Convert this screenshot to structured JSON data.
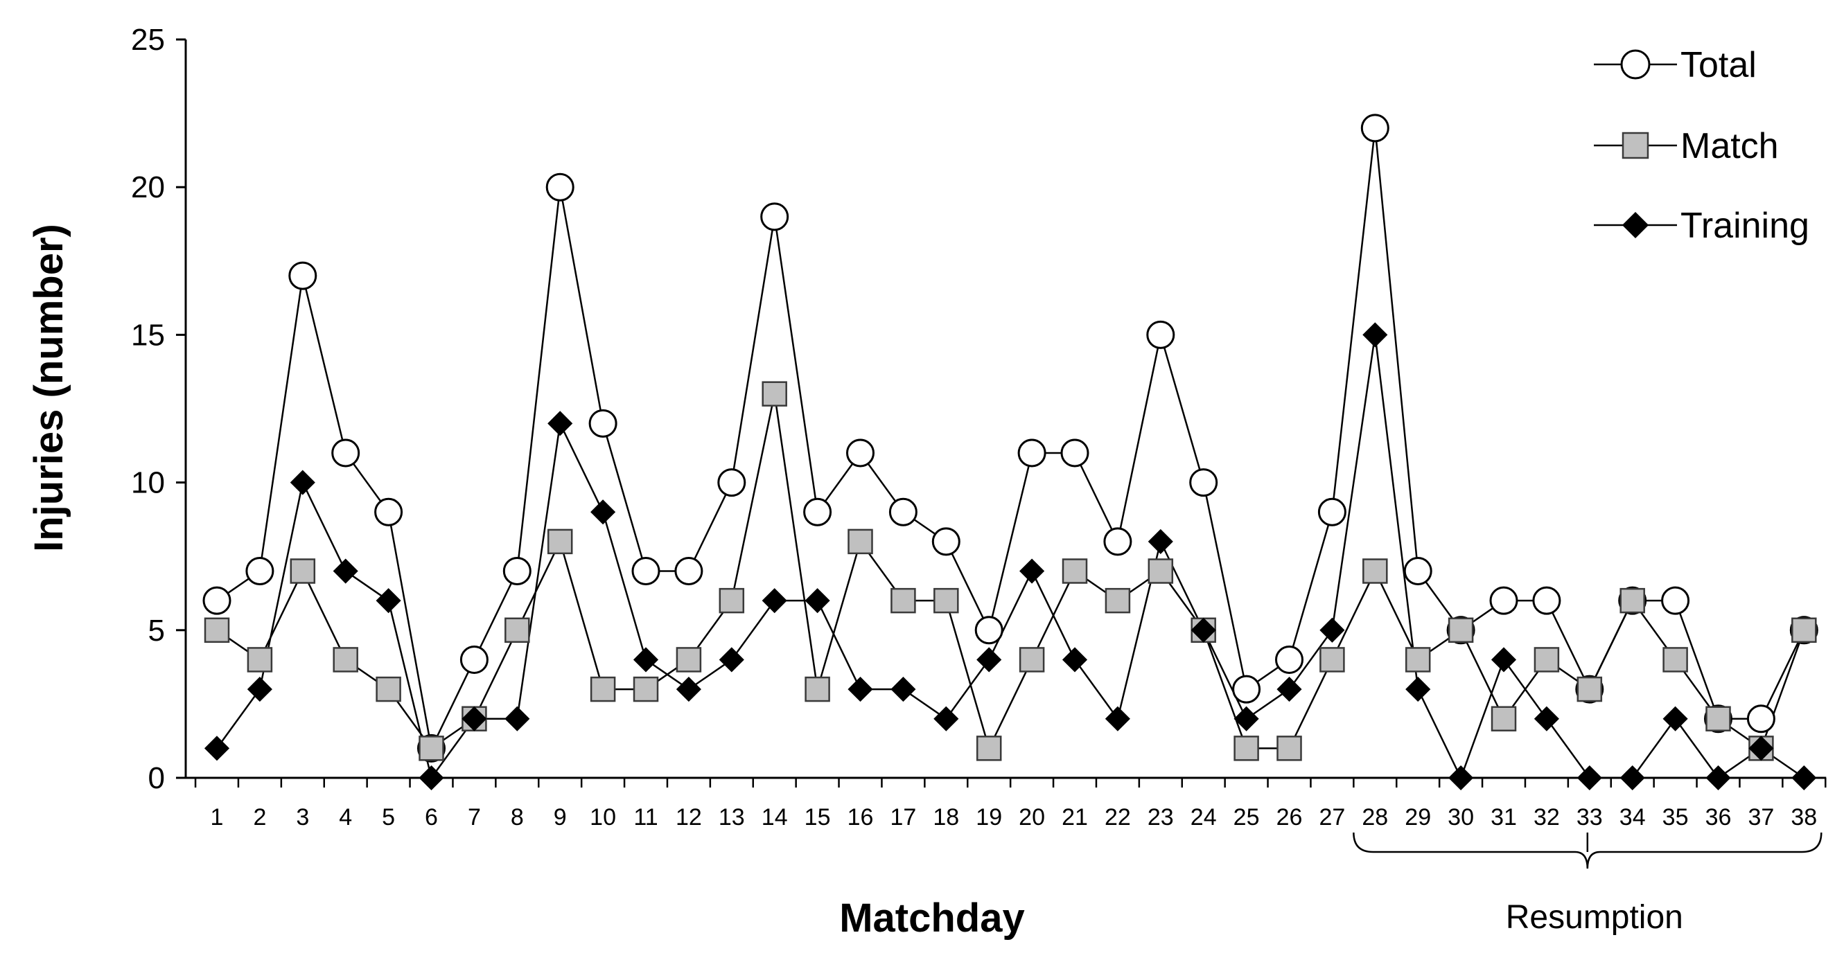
{
  "chart_data": {
    "type": "line",
    "xlabel": "Matchday",
    "ylabel": "Injuries (number)",
    "ylim": [
      0,
      25
    ],
    "yticks": [
      0,
      5,
      10,
      15,
      20,
      25
    ],
    "x": [
      1,
      2,
      3,
      4,
      5,
      6,
      7,
      8,
      9,
      10,
      11,
      12,
      13,
      14,
      15,
      16,
      17,
      18,
      19,
      20,
      21,
      22,
      23,
      24,
      25,
      26,
      27,
      28,
      29,
      30,
      31,
      32,
      33,
      34,
      35,
      36,
      37,
      38
    ],
    "series": [
      {
        "name": "Total",
        "marker": "circle",
        "color": "#ffffff",
        "values": [
          6,
          7,
          17,
          11,
          9,
          1,
          4,
          7,
          20,
          12,
          7,
          7,
          10,
          19,
          9,
          11,
          9,
          8,
          5,
          11,
          11,
          8,
          15,
          10,
          3,
          4,
          9,
          22,
          7,
          5,
          6,
          6,
          3,
          6,
          6,
          2,
          2,
          5
        ]
      },
      {
        "name": "Match",
        "marker": "square",
        "color": "#c0c0c0",
        "values": [
          5,
          4,
          7,
          4,
          3,
          1,
          2,
          5,
          8,
          3,
          3,
          4,
          6,
          13,
          3,
          8,
          6,
          6,
          1,
          4,
          7,
          6,
          7,
          5,
          1,
          1,
          4,
          7,
          4,
          5,
          2,
          4,
          3,
          6,
          4,
          2,
          1,
          5
        ]
      },
      {
        "name": "Training",
        "marker": "diamond",
        "color": "#000000",
        "values": [
          1,
          3,
          10,
          7,
          6,
          0,
          2,
          2,
          12,
          9,
          4,
          3,
          4,
          6,
          6,
          3,
          3,
          2,
          4,
          7,
          4,
          2,
          8,
          5,
          2,
          3,
          5,
          15,
          3,
          0,
          4,
          2,
          0,
          0,
          2,
          0,
          1,
          0
        ]
      }
    ],
    "legend_position": "top-right",
    "grid": false,
    "annotation": {
      "text": "Resumption",
      "from": 28,
      "to": 38
    }
  }
}
